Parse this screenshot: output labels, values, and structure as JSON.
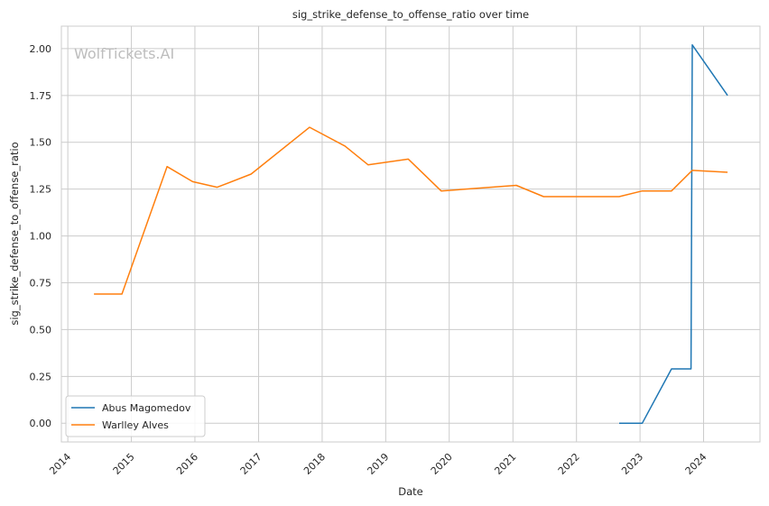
{
  "chart_data": {
    "type": "line",
    "title": "sig_strike_defense_to_offense_ratio over time",
    "xlabel": "Date",
    "ylabel": "sig_strike_defense_to_offense_ratio",
    "watermark": "WolfTickets.AI",
    "x_ticks": [
      "2014",
      "2015",
      "2016",
      "2017",
      "2018",
      "2019",
      "2020",
      "2021",
      "2022",
      "2023",
      "2024"
    ],
    "y_ticks": [
      "0.00",
      "0.25",
      "0.50",
      "0.75",
      "1.00",
      "1.25",
      "1.50",
      "1.75",
      "2.00"
    ],
    "xlim": [
      "2013-11-25",
      "2024-11-20"
    ],
    "ylim": [
      -0.1,
      2.12
    ],
    "grid": true,
    "legend_position": "lower-left",
    "series": [
      {
        "name": "Abus Magomedov",
        "color": "#1f77b4",
        "points": [
          {
            "x": "2022-09-03",
            "y": 0.0
          },
          {
            "x": "2023-01-14",
            "y": 0.0
          },
          {
            "x": "2023-07-01",
            "y": 0.29
          },
          {
            "x": "2023-10-21",
            "y": 0.29
          },
          {
            "x": "2023-10-28",
            "y": 2.02
          },
          {
            "x": "2024-05-18",
            "y": 1.75
          }
        ]
      },
      {
        "name": "Warlley Alves",
        "color": "#ff7f0e",
        "points": [
          {
            "x": "2014-05-31",
            "y": 0.69
          },
          {
            "x": "2014-11-08",
            "y": 0.69
          },
          {
            "x": "2015-07-25",
            "y": 1.37
          },
          {
            "x": "2015-12-19",
            "y": 1.29
          },
          {
            "x": "2016-05-08",
            "y": 1.26
          },
          {
            "x": "2016-11-19",
            "y": 1.33
          },
          {
            "x": "2017-10-21",
            "y": 1.58
          },
          {
            "x": "2018-05-12",
            "y": 1.48
          },
          {
            "x": "2018-09-22",
            "y": 1.38
          },
          {
            "x": "2019-05-11",
            "y": 1.41
          },
          {
            "x": "2019-11-16",
            "y": 1.24
          },
          {
            "x": "2021-01-20",
            "y": 1.27
          },
          {
            "x": "2021-06-26",
            "y": 1.21
          },
          {
            "x": "2022-09-03",
            "y": 1.21
          },
          {
            "x": "2023-01-14",
            "y": 1.24
          },
          {
            "x": "2023-07-01",
            "y": 1.24
          },
          {
            "x": "2023-10-28",
            "y": 1.35
          },
          {
            "x": "2024-05-18",
            "y": 1.34
          }
        ]
      }
    ]
  }
}
